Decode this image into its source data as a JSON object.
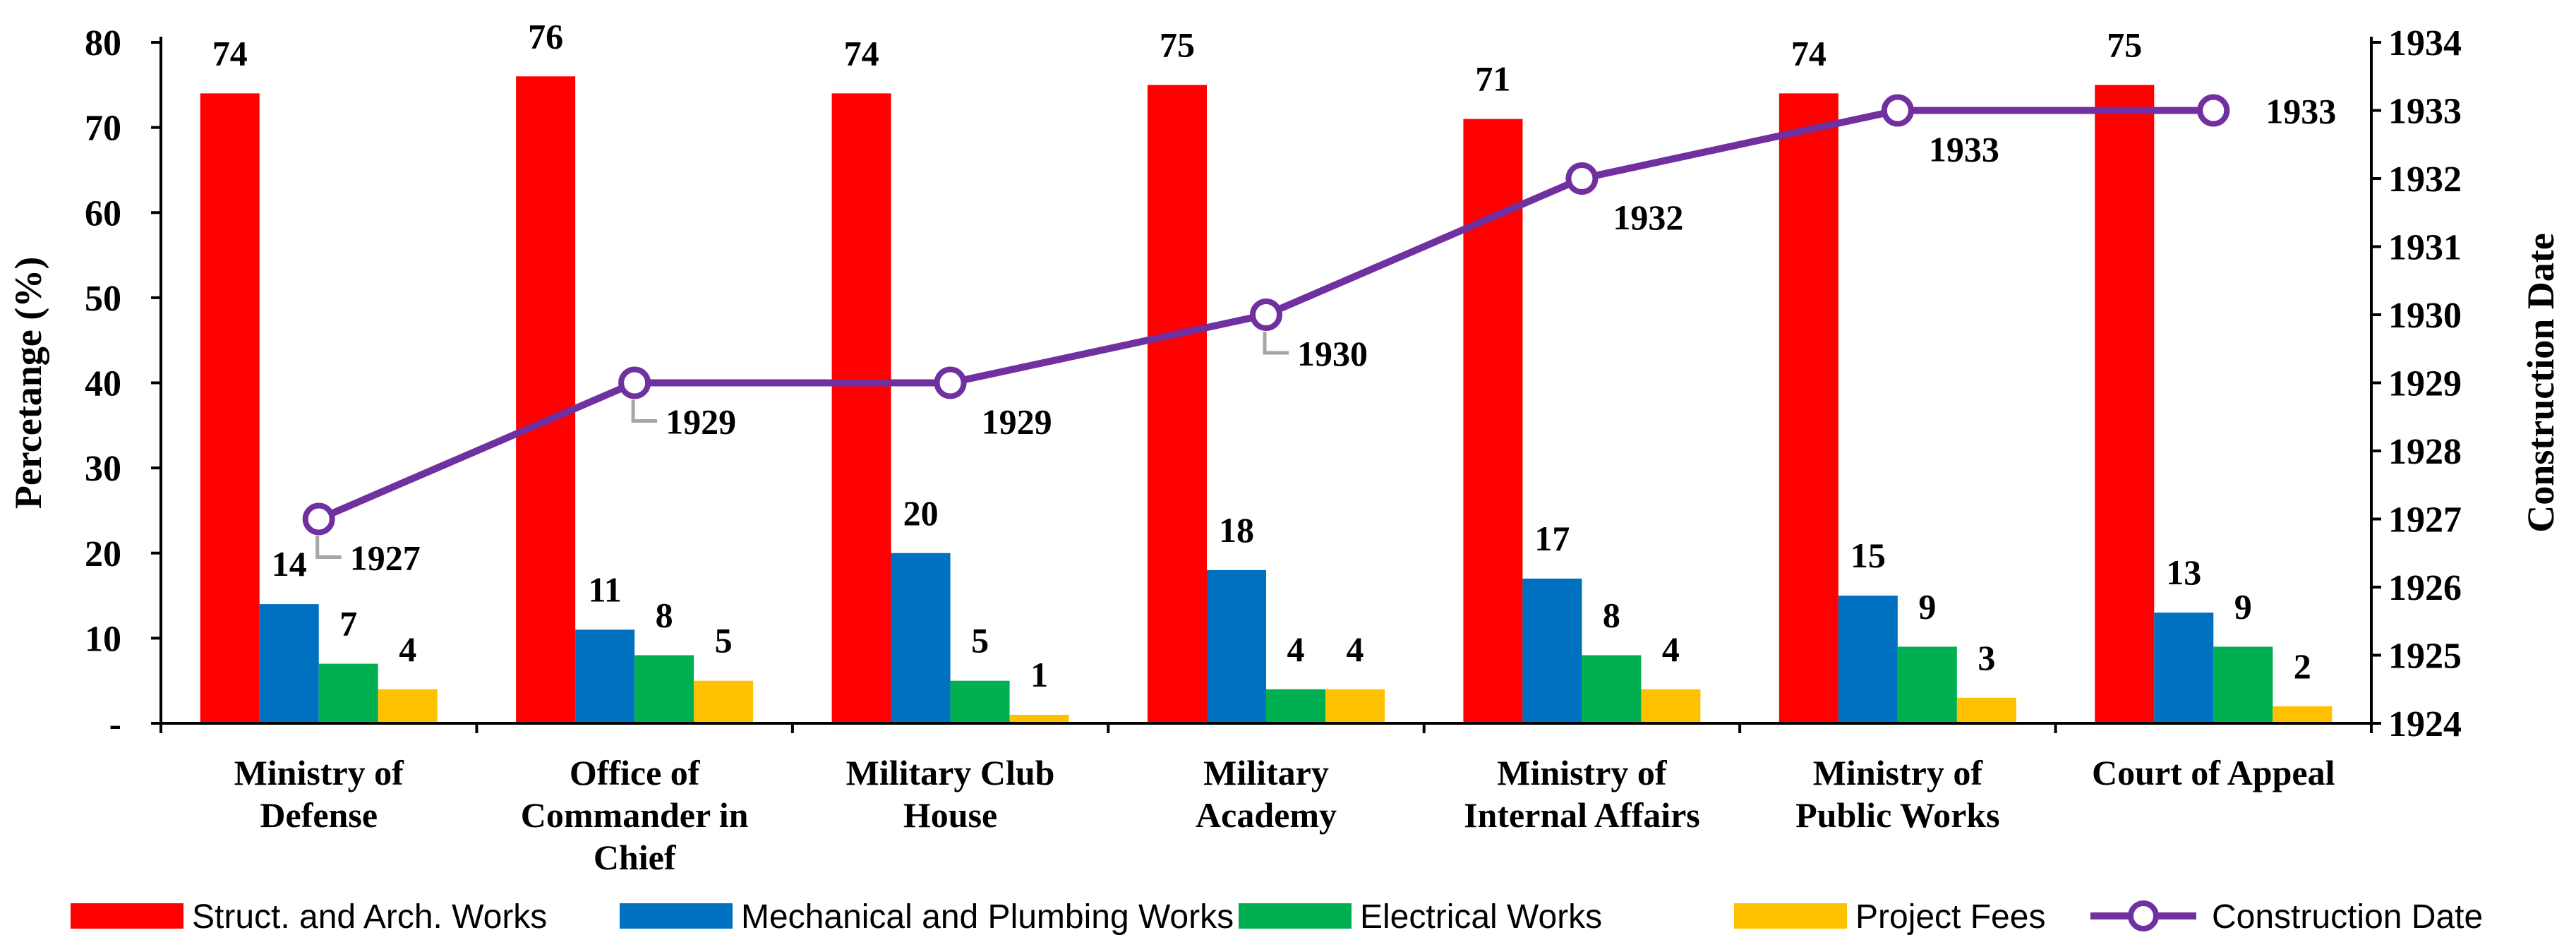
{
  "chart_data": {
    "type": "bar",
    "categories": [
      [
        "Ministry of",
        "Defense"
      ],
      [
        "Office of",
        "Commander in",
        "Chief"
      ],
      [
        "Military Club",
        "House"
      ],
      [
        "Military",
        "Academy"
      ],
      [
        "Ministry of",
        "Internal Affairs"
      ],
      [
        "Ministry of",
        "Public Works"
      ],
      [
        "Court of Appeal"
      ]
    ],
    "series": [
      {
        "name": "Struct. and Arch. Works",
        "color": "#FF0000",
        "values": [
          74,
          76,
          74,
          75,
          71,
          74,
          75
        ],
        "labels": [
          "74",
          "76",
          "74",
          "75",
          "71",
          "74",
          "75"
        ]
      },
      {
        "name": "Mechanical and Plumbing Works",
        "color": "#0070C0",
        "values": [
          14,
          11,
          20,
          18,
          17,
          15,
          13
        ],
        "labels": [
          "14",
          "11",
          "20",
          "18",
          "17",
          "15",
          "13"
        ]
      },
      {
        "name": "Electrical Works",
        "color": "#00B050",
        "values": [
          7,
          8,
          5,
          4,
          8,
          9,
          9
        ],
        "labels": [
          "7",
          "8",
          "5",
          "4",
          "8",
          "9",
          "9"
        ]
      },
      {
        "name": "Project Fees",
        "color": "#FFC000",
        "values": [
          4,
          5,
          1,
          4,
          4,
          3,
          2
        ],
        "labels": [
          "4",
          "5",
          "1",
          "4",
          "4",
          "3",
          "2"
        ]
      }
    ],
    "line_series": {
      "name": "Construction Date",
      "color": "#7030A0",
      "values": [
        1927,
        1929,
        1929,
        1930,
        1932,
        1933,
        1933
      ],
      "labels": [
        "1927",
        "1929",
        "1929",
        "1930",
        "1932",
        "1933",
        "1933"
      ]
    },
    "title": "",
    "ylabel": "Percetange (%)",
    "y2label": "Construction Date",
    "ylim": [
      0,
      80
    ],
    "y_ticks": [
      "-",
      "10",
      "20",
      "30",
      "40",
      "50",
      "60",
      "70",
      "80"
    ],
    "y2lim": [
      1924,
      1934
    ],
    "y2_ticks": [
      "1924",
      "1925",
      "1926",
      "1927",
      "1928",
      "1929",
      "1930",
      "1931",
      "1932",
      "1933",
      "1934"
    ],
    "grid": false,
    "legend_position": "bottom"
  }
}
